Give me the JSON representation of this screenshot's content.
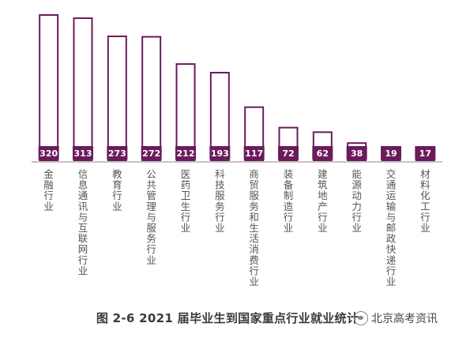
{
  "figure": {
    "caption": "图 2-6  2021 届毕业生到国家重点行业就业统计",
    "watermark": "北京高考资讯",
    "watermark_icon": "wechat-icon"
  },
  "colors": {
    "bar_stroke": "#6b1b5c",
    "label_bg": "#6b1b5c",
    "label_text": "#ffffff",
    "category_text": "#555555",
    "axis": "#888888"
  },
  "chart_data": {
    "type": "bar",
    "title": "",
    "xlabel": "",
    "ylabel": "",
    "ylim": [
      0,
      320
    ],
    "grid": false,
    "legend": "none",
    "categories": [
      "金融行业",
      "信息通讯与互联网行业",
      "教育行业",
      "公共管理与服务行业",
      "医药卫生行业",
      "科技服务行业",
      "商贸服务和生活消费行业",
      "装备制造行业",
      "建筑地产行业",
      "能源动力行业",
      "交通运输与邮政快递行业",
      "材料化工行业"
    ],
    "values": [
      320,
      313,
      273,
      272,
      212,
      193,
      117,
      72,
      62,
      38,
      19,
      17
    ],
    "value_labels": [
      "320",
      "313",
      "273",
      "272",
      "212",
      "193",
      "117",
      "72",
      "62",
      "38",
      "19",
      "17"
    ]
  }
}
